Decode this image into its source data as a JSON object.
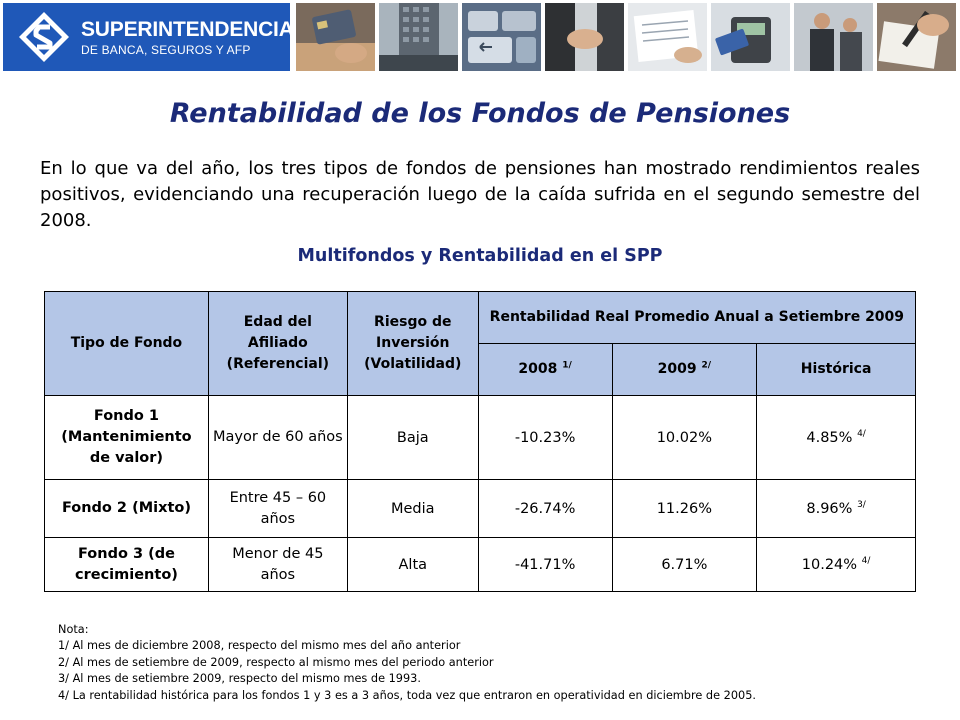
{
  "header": {
    "logo_name": "SUPERINTENDENCIA",
    "logo_sub": "DE BANCA, SEGUROS Y AFP",
    "brand_color": "#1f58b8",
    "photos": [
      "credit-card-photo",
      "office-building-photo",
      "keyboard-enter-photo",
      "handshake-photo",
      "documents-photo",
      "card-terminal-photo",
      "business-meeting-photo",
      "signing-document-photo"
    ]
  },
  "title": "Rentabilidad de los Fondos de Pensiones",
  "intro": "En lo que va del año, los tres tipos de fondos de pensiones han mostrado rendimientos reales positivos, evidenciando una recuperación luego de la caída sufrida en el segundo semestre del 2008.",
  "subtitle": "Multifondos y Rentabilidad en el SPP",
  "table": {
    "header_color": "#b4c6e7",
    "col_tipo": "Tipo de Fondo",
    "col_edad": "Edad del Afiliado (Referencial)",
    "col_riesgo": "Riesgo de Inversión (Volatilidad)",
    "col_rent": "Rentabilidad Real Promedio Anual a Setiembre 2009",
    "col_2008": "2008",
    "col_2008_note": "1/",
    "col_2009": "2009",
    "col_2009_note": "2/",
    "col_hist": "Histórica",
    "rows": [
      {
        "fondo": "Fondo 1 (Mantenimiento de valor)",
        "edad": "Mayor de 60 años",
        "riesgo": "Baja",
        "r2008": "-10.23%",
        "r2009": "10.02%",
        "hist": "4.85%",
        "hist_note": "4/"
      },
      {
        "fondo": "Fondo 2 (Mixto)",
        "edad": "Entre 45 – 60 años",
        "riesgo": "Media",
        "r2008": "-26.74%",
        "r2009": "11.26%",
        "hist": "8.96%",
        "hist_note": "3/"
      },
      {
        "fondo": "Fondo 3 (de crecimiento)",
        "edad": "Menor de 45 años",
        "riesgo": "Alta",
        "r2008": "-41.71%",
        "r2009": "6.71%",
        "hist": "10.24%",
        "hist_note": "4/"
      }
    ]
  },
  "notes": [
    "Nota:",
    "1/ Al mes de diciembre 2008, respecto del mismo mes del año anterior",
    "2/ Al mes de setiembre de 2009, respecto al mismo mes del periodo anterior",
    "3/ Al mes de setiembre 2009, respecto del mismo mes de 1993.",
    "4/ La rentabilidad histórica para los fondos 1 y 3 es a 3 años, toda vez que entraron en operatividad en diciembre de 2005."
  ]
}
